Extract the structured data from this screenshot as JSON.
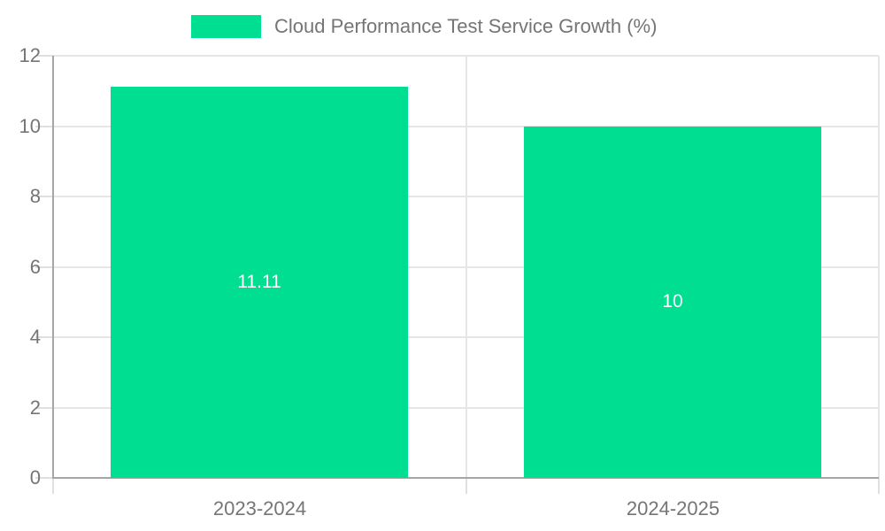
{
  "chart_data": {
    "type": "bar",
    "title": "Cloud Performance Test Service Growth (%)",
    "categories": [
      "2023-2024",
      "2024-2025"
    ],
    "values": [
      11.11,
      10
    ],
    "bar_labels": [
      "11.11",
      "10"
    ],
    "xlabel": "",
    "ylabel": "",
    "ylim": [
      0,
      12
    ],
    "yticks": [
      0,
      2,
      4,
      6,
      8,
      10,
      12
    ],
    "grid": true,
    "legend_position": "top",
    "bar_label_position": "center",
    "colors": {
      "bar": "#00de92",
      "bar_label": "#ffffff",
      "axis_text": "#757575",
      "axis_line": "#a6a6a6",
      "grid_line": "#e6e6e6",
      "tick_line": "#e0e0e0",
      "background": "#ffffff"
    }
  }
}
